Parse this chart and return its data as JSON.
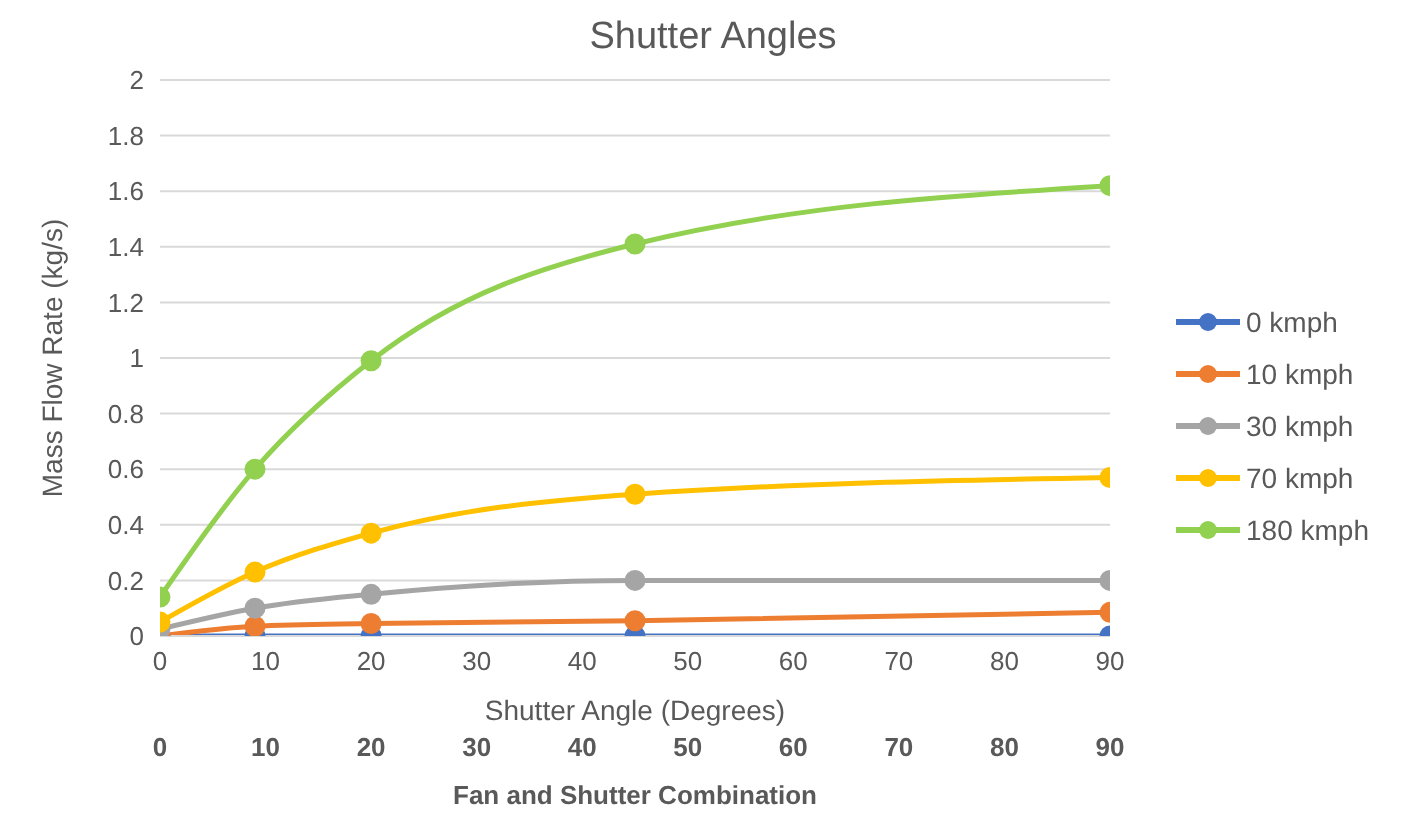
{
  "chart_data": {
    "type": "line",
    "title": "Shutter Angles",
    "xlabel": "Shutter Angle (Degrees)",
    "ylabel": "Mass Flow Rate (kg/s)",
    "x2label": "Fan and Shutter Combination",
    "x": [
      0,
      9,
      20,
      45,
      90
    ],
    "xlim": [
      0,
      90
    ],
    "xticks": [
      0,
      10,
      20,
      30,
      40,
      50,
      60,
      70,
      80,
      90
    ],
    "x2lim": [
      0,
      90
    ],
    "x2ticks": [
      0,
      10,
      20,
      30,
      40,
      50,
      60,
      70,
      80,
      90
    ],
    "ylim": [
      0,
      2
    ],
    "yticks": [
      0,
      0.2,
      0.4,
      0.6,
      0.8,
      1,
      1.2,
      1.4,
      1.6,
      1.8,
      2
    ],
    "grid": "y",
    "legend": "right",
    "marker": "circle",
    "line_style": "solid",
    "series": [
      {
        "name": "0 kmph",
        "color": "#4472c4",
        "values": [
          0,
          0,
          0,
          0,
          0
        ]
      },
      {
        "name": "10 kmph",
        "color": "#ed7d31",
        "values": [
          0,
          0.035,
          0.045,
          0.055,
          0.085
        ]
      },
      {
        "name": "30 kmph",
        "color": "#a5a5a5",
        "values": [
          0.025,
          0.1,
          0.15,
          0.2,
          0.2
        ]
      },
      {
        "name": "70 kmph",
        "color": "#ffc000",
        "values": [
          0.05,
          0.23,
          0.37,
          0.51,
          0.57
        ]
      },
      {
        "name": "180 kmph",
        "color": "#92d050",
        "values": [
          0.14,
          0.6,
          0.99,
          1.41,
          1.62
        ]
      }
    ]
  }
}
